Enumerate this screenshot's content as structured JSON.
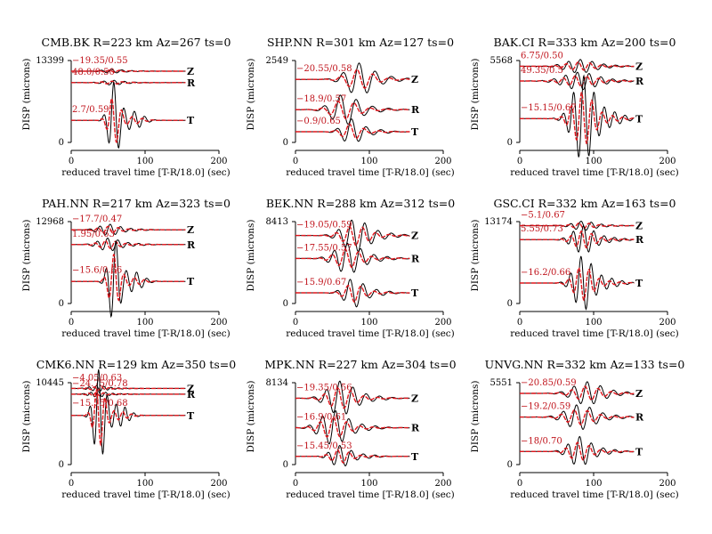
{
  "chart_data": [
    {
      "type": "line",
      "title": "CMB.BK R=223 km Az=267 ts=0",
      "ylabel": "DISP (microns)",
      "xlabel": "reduced travel time [T-R/18.0] (sec)",
      "xlim": [
        0,
        200
      ],
      "xticks": [
        "0",
        "100",
        "200"
      ],
      "ytop": "13399",
      "ybottom": "0",
      "traces": [
        {
          "component": "Z",
          "annotation": "−19.35/0.55",
          "baseline": 0.87,
          "amp": 0.02,
          "center": 55,
          "width": 18,
          "period": 14
        },
        {
          "component": "R",
          "annotation": "48.0/0.50",
          "baseline": 0.73,
          "amp": 0.025,
          "center": 55,
          "width": 18,
          "period": 14
        },
        {
          "component": "T",
          "annotation": "2.7/0.59",
          "baseline": 0.27,
          "amp": 0.45,
          "center": 58,
          "width": 10,
          "period": 14
        }
      ]
    },
    {
      "type": "line",
      "title": "SHP.NN R=301 km Az=127 ts=0",
      "ylabel": "DISP (microns)",
      "xlabel": "reduced travel time [T-R/18.0] (sec)",
      "xlim": [
        0,
        200
      ],
      "xticks": [
        "0",
        "100",
        "200"
      ],
      "ytop": "2549",
      "ybottom": "0",
      "traces": [
        {
          "component": "Z",
          "annotation": "−20.55/0.58",
          "baseline": 0.77,
          "amp": 0.17,
          "center": 85,
          "width": 22,
          "period": 22
        },
        {
          "component": "R",
          "annotation": "−18.9/0.57",
          "baseline": 0.4,
          "amp": 0.16,
          "center": 65,
          "width": 22,
          "period": 22
        },
        {
          "component": "T",
          "annotation": "−0.9/0.65",
          "baseline": 0.13,
          "amp": 0.14,
          "center": 75,
          "width": 16,
          "period": 20
        }
      ]
    },
    {
      "type": "line",
      "title": "BAK.CI R=333 km Az=200 ts=0",
      "ylabel": "DISP (microns)",
      "xlabel": "reduced travel time [T-R/18.0] (sec)",
      "xlim": [
        0,
        200
      ],
      "xticks": [
        "0",
        "100",
        "200"
      ],
      "ytop": "5568",
      "ybottom": "0",
      "traces": [
        {
          "component": "Z",
          "annotation": "6.75/0.50",
          "baseline": 0.93,
          "amp": 0.07,
          "center": 80,
          "width": 25,
          "period": 16
        },
        {
          "component": "R",
          "annotation": "49.35/0.5",
          "baseline": 0.75,
          "amp": 0.09,
          "center": 80,
          "width": 28,
          "period": 16
        },
        {
          "component": "T",
          "annotation": "−15.15/0.67",
          "baseline": 0.29,
          "amp": 0.46,
          "center": 85,
          "width": 18,
          "period": 14
        }
      ]
    },
    {
      "type": "line",
      "title": "PAH.NN R=217 km Az=323 ts=0",
      "ylabel": "DISP (microns)",
      "xlabel": "reduced travel time [T-R/18.0] (sec)",
      "xlim": [
        0,
        200
      ],
      "xticks": [
        "0",
        "100",
        "200"
      ],
      "ytop": "12968",
      "ybottom": "0",
      "traces": [
        {
          "component": "Z",
          "annotation": "−17.7/0.47",
          "baseline": 0.9,
          "amp": 0.06,
          "center": 50,
          "width": 18,
          "period": 14
        },
        {
          "component": "R",
          "annotation": "1.95/0.63",
          "baseline": 0.72,
          "amp": 0.07,
          "center": 50,
          "width": 18,
          "period": 14
        },
        {
          "component": "T",
          "annotation": "−15.6/0.66",
          "baseline": 0.27,
          "amp": 0.5,
          "center": 58,
          "width": 10,
          "period": 14
        }
      ]
    },
    {
      "type": "line",
      "title": "BEK.NN R=288 km Az=312 ts=0",
      "ylabel": "DISP (microns)",
      "xlabel": "reduced travel time [T-R/18.0] (sec)",
      "xlim": [
        0,
        200
      ],
      "xticks": [
        "0",
        "100",
        "200"
      ],
      "ytop": "8413",
      "ybottom": "0",
      "traces": [
        {
          "component": "Z",
          "annotation": "−19.05/0.59",
          "baseline": 0.83,
          "amp": 0.17,
          "center": 80,
          "width": 22,
          "period": 18
        },
        {
          "component": "R",
          "annotation": "−17.55/0.57",
          "baseline": 0.55,
          "amp": 0.16,
          "center": 70,
          "width": 22,
          "period": 18
        },
        {
          "component": "T",
          "annotation": "−15.9/0.67",
          "baseline": 0.13,
          "amp": 0.16,
          "center": 78,
          "width": 16,
          "period": 18
        }
      ]
    },
    {
      "type": "line",
      "title": "GSC.CI R=332 km Az=163 ts=0",
      "ylabel": "DISP (microns)",
      "xlabel": "reduced travel time [T-R/18.0] (sec)",
      "xlim": [
        0,
        200
      ],
      "xticks": [
        "0",
        "100",
        "200"
      ],
      "ytop": "13174",
      "ybottom": "0",
      "traces": [
        {
          "component": "Z",
          "annotation": "−5.1/0.67",
          "baseline": 0.95,
          "amp": 0.05,
          "center": 85,
          "width": 18,
          "period": 14
        },
        {
          "component": "R",
          "annotation": "5.55/0.73",
          "baseline": 0.78,
          "amp": 0.15,
          "center": 85,
          "width": 18,
          "period": 14
        },
        {
          "component": "T",
          "annotation": "−16.2/0.66",
          "baseline": 0.25,
          "amp": 0.3,
          "center": 85,
          "width": 16,
          "period": 14
        }
      ]
    },
    {
      "type": "line",
      "title": "CMK6.NN R=129 km Az=350 ts=0",
      "ylabel": "DISP (microns)",
      "xlabel": "reduced travel time [T-R/18.0] (sec)",
      "xlim": [
        0,
        200
      ],
      "xticks": [
        "0",
        "100",
        "200"
      ],
      "ytop": "10445",
      "ybottom": "0",
      "traces": [
        {
          "component": "Z",
          "annotation": "−4.05/0.63",
          "baseline": 0.93,
          "amp": 0.03,
          "center": 35,
          "width": 15,
          "period": 10
        },
        {
          "component": "R",
          "annotation": "−24.75/0.78",
          "baseline": 0.86,
          "amp": 0.03,
          "center": 35,
          "width": 15,
          "period": 10
        },
        {
          "component": "T",
          "annotation": "−15.75/0.68",
          "baseline": 0.6,
          "amp": 0.55,
          "center": 38,
          "width": 10,
          "period": 12
        }
      ]
    },
    {
      "type": "line",
      "title": "MPK.NN R=227 km Az=304 ts=0",
      "ylabel": "DISP (microns)",
      "xlabel": "reduced travel time [T-R/18.0] (sec)",
      "xlim": [
        0,
        200
      ],
      "xticks": [
        "0",
        "100",
        "200"
      ],
      "ytop": "8134",
      "ybottom": "0",
      "traces": [
        {
          "component": "Z",
          "annotation": "−19.35/0.56",
          "baseline": 0.81,
          "amp": 0.18,
          "center": 60,
          "width": 22,
          "period": 18
        },
        {
          "component": "R",
          "annotation": "−16.9/0.61",
          "baseline": 0.45,
          "amp": 0.18,
          "center": 50,
          "width": 22,
          "period": 18
        },
        {
          "component": "T",
          "annotation": "−15.45/0.53",
          "baseline": 0.1,
          "amp": 0.12,
          "center": 60,
          "width": 16,
          "period": 16
        }
      ]
    },
    {
      "type": "line",
      "title": "UNVG.NN R=332 km Az=133 ts=0",
      "ylabel": "DISP (microns)",
      "xlabel": "reduced travel time [T-R/18.0] (sec)",
      "xlim": [
        0,
        200
      ],
      "xticks": [
        "0",
        "100",
        "200"
      ],
      "ytop": "5551",
      "ybottom": "0",
      "traces": [
        {
          "component": "Z",
          "annotation": "−20.85/0.59",
          "baseline": 0.87,
          "amp": 0.12,
          "center": 90,
          "width": 24,
          "period": 18
        },
        {
          "component": "R",
          "annotation": "−19.2/0.59",
          "baseline": 0.58,
          "amp": 0.13,
          "center": 80,
          "width": 24,
          "period": 18
        },
        {
          "component": "T",
          "annotation": "−18/0.70",
          "baseline": 0.16,
          "amp": 0.16,
          "center": 80,
          "width": 18,
          "period": 16
        }
      ]
    }
  ]
}
